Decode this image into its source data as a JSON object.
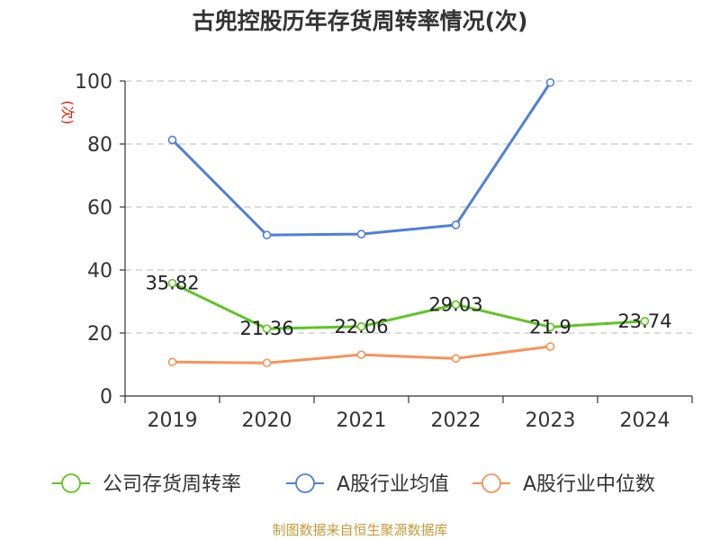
{
  "chart_data": {
    "type": "line",
    "title": "古兜控股历年存货周转率情况(次)",
    "ylabel": "(次)",
    "xlabel": "",
    "categories": [
      "2019",
      "2020",
      "2021",
      "2022",
      "2023",
      "2024"
    ],
    "ylim": [
      0,
      100
    ],
    "yticks": [
      0,
      20,
      40,
      60,
      80,
      100
    ],
    "grid": true,
    "legend_position": "bottom",
    "series": [
      {
        "name": "公司存货周转率",
        "color": "#5ec424",
        "values": [
          35.82,
          21.36,
          22.06,
          29.03,
          21.9,
          23.74
        ],
        "labels": [
          "35.82",
          "21.36",
          "22.06",
          "29.03",
          "21.9",
          "23.74"
        ]
      },
      {
        "name": "A股行业均值",
        "color": "#4f7fd8",
        "values": [
          81.3,
          51.1,
          51.4,
          54.3,
          99.5,
          null
        ]
      },
      {
        "name": "A股行业中位数",
        "color": "#f79259",
        "values": [
          10.8,
          10.5,
          13.1,
          11.9,
          15.7,
          null
        ]
      }
    ]
  },
  "footer": {
    "source": "制图数据来自恒生聚源数据库"
  }
}
